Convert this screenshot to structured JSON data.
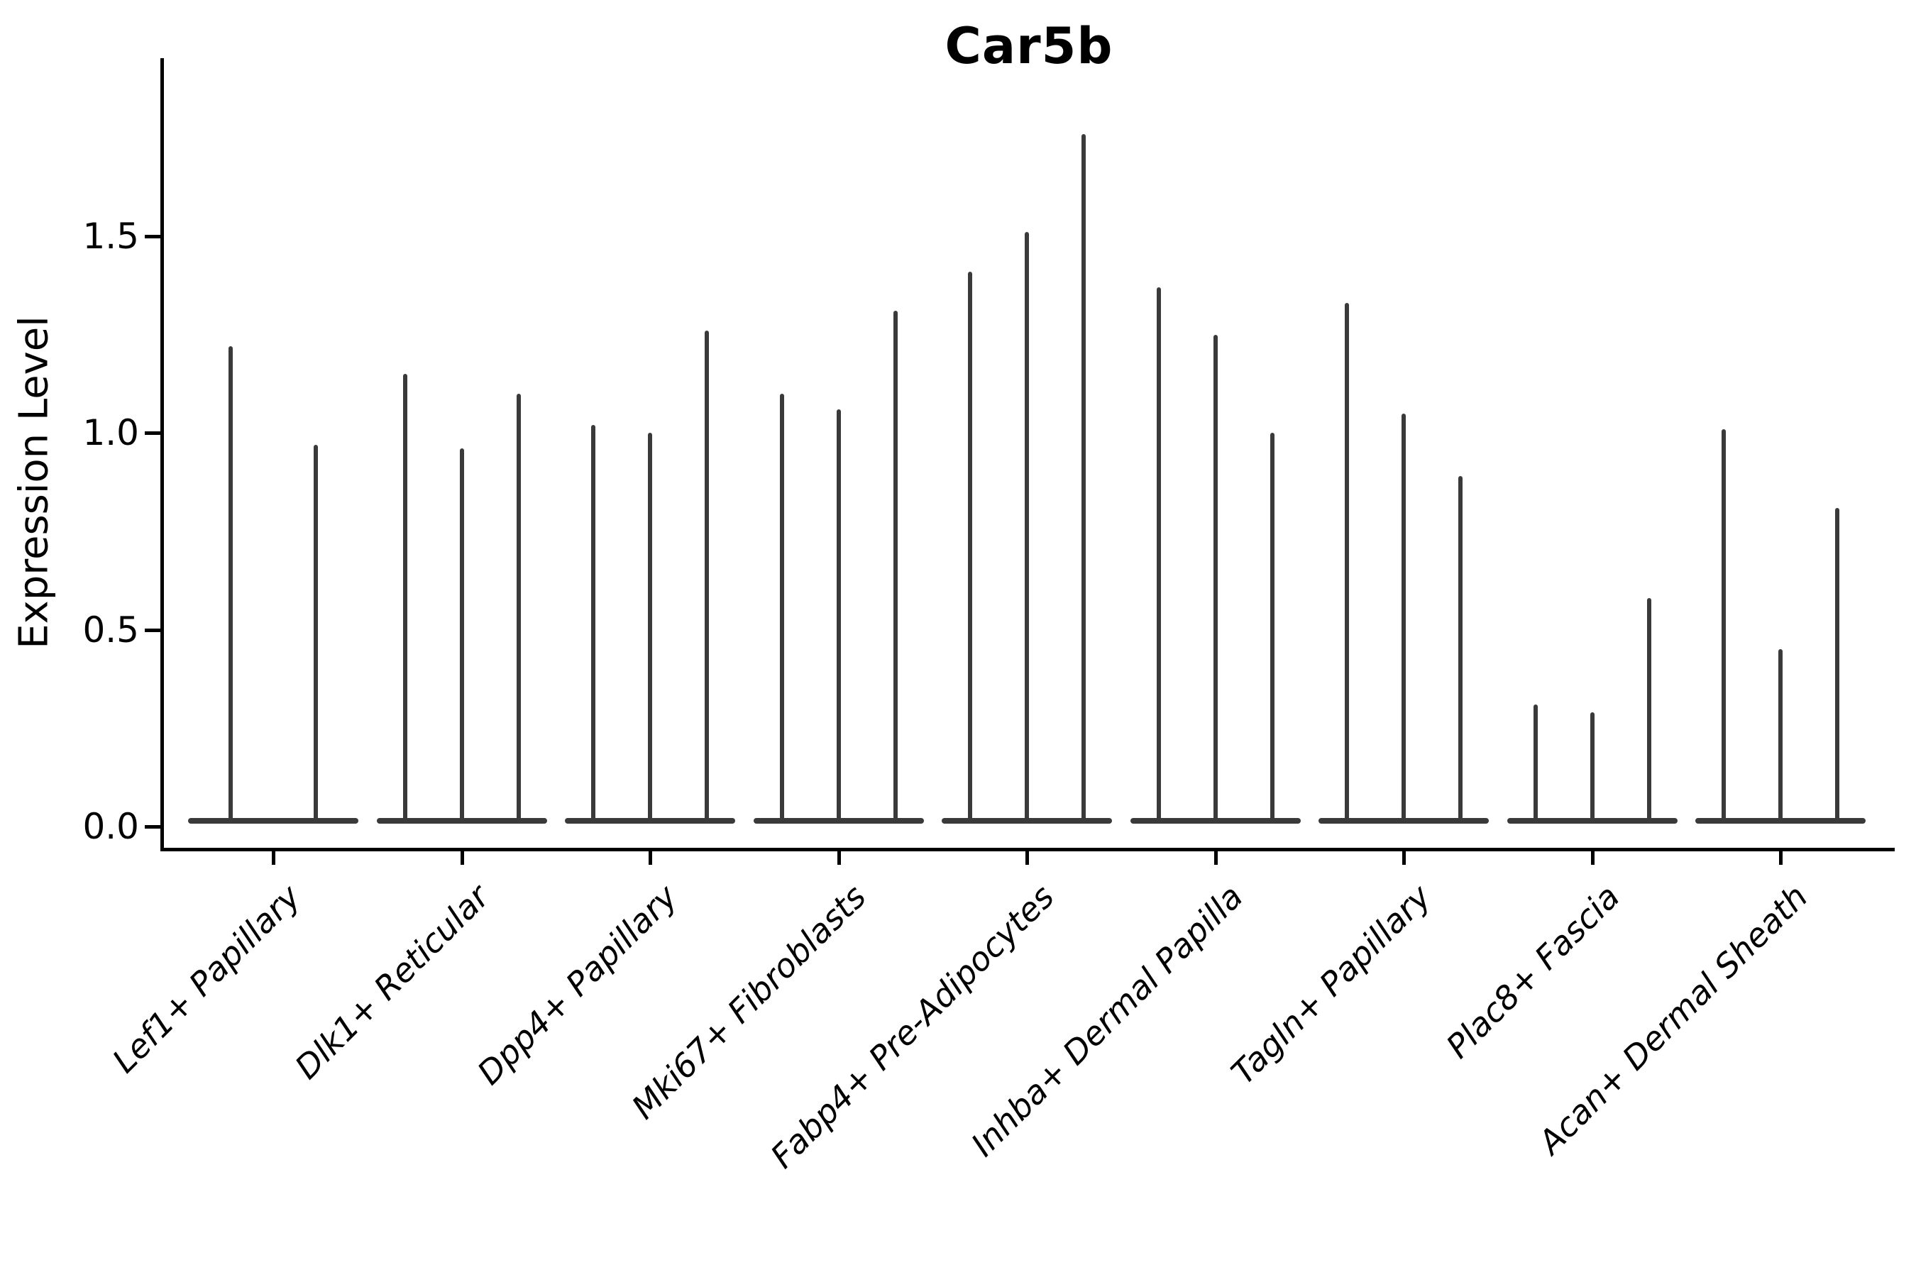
{
  "figure": {
    "background": "#ffffff",
    "axis_color": "#000000",
    "text_color": "#000000"
  },
  "chart_data": {
    "type": "violin",
    "title": "Car5b",
    "ylabel": "Expression Level",
    "xlabel": "",
    "grid": false,
    "legend": "none",
    "ylim": [
      0,
      1.95
    ],
    "yticks": [
      0,
      0.5,
      1.0,
      1.5
    ],
    "ytick_labels": [
      "0.0",
      "0.5",
      "1.0",
      "1.5"
    ],
    "violin_color": "#3a3a3a",
    "shape_note": "needle-thin violins: density mass concentrated at 0 (flat base) with a thin spike up to the listed max expression value",
    "categories": [
      "Lef1+ Papillary",
      "Dlk1+ Reticular",
      "Dpp4+ Papillary",
      "Mki67+ Fibroblasts",
      "Fabp4+ Pre-Adipocytes",
      "Inhba+ Dermal Papilla",
      "Tagln+ Papillary",
      "Plac8+ Fascia",
      "Acan+ Dermal Sheath"
    ],
    "groups": [
      {
        "category": "Lef1+ Papillary",
        "peaks": [
          1.22,
          0.97
        ]
      },
      {
        "category": "Dlk1+ Reticular",
        "peaks": [
          1.15,
          0.96,
          1.1
        ]
      },
      {
        "category": "Dpp4+ Papillary",
        "peaks": [
          1.02,
          1.0,
          1.26
        ]
      },
      {
        "category": "Mki67+ Fibroblasts",
        "peaks": [
          1.1,
          1.06,
          1.31
        ]
      },
      {
        "category": "Fabp4+ Pre-Adipocytes",
        "peaks": [
          1.41,
          1.51,
          1.76
        ]
      },
      {
        "category": "Inhba+ Dermal Papilla",
        "peaks": [
          1.37,
          1.25,
          1.0
        ]
      },
      {
        "category": "Tagln+ Papillary",
        "peaks": [
          1.33,
          1.05,
          0.89
        ]
      },
      {
        "category": "Plac8+ Fascia",
        "peaks": [
          0.31,
          0.29,
          0.58
        ]
      },
      {
        "category": "Acan+ Dermal Sheath",
        "peaks": [
          1.01,
          0.45,
          0.81
        ]
      }
    ]
  }
}
